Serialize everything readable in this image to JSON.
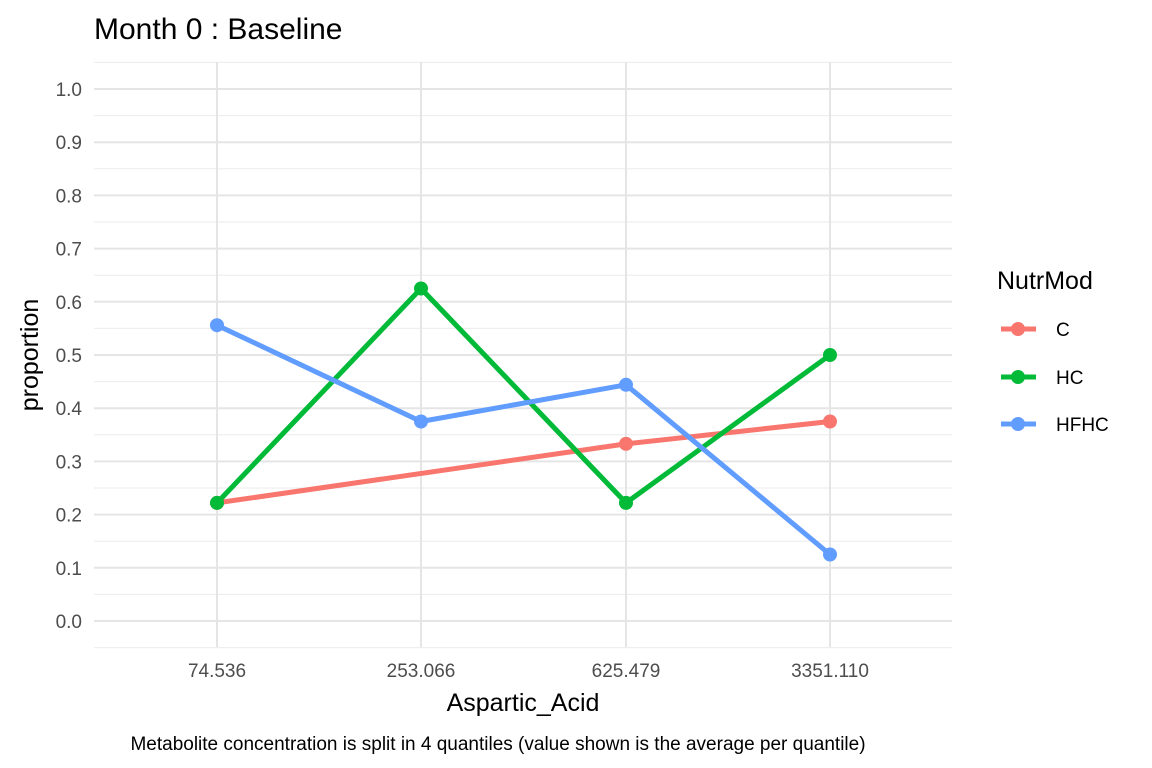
{
  "chart_data": {
    "type": "line",
    "title": "Month 0 : Baseline",
    "xlabel": "Aspartic_Acid",
    "ylabel": "proportion",
    "caption": "Metabolite concentration is split in 4 quantiles (value shown is the average per quantile)",
    "categories": [
      "74.536",
      "253.066",
      "625.479",
      "3351.110"
    ],
    "y_ticks": [
      "0.0",
      "0.1",
      "0.2",
      "0.3",
      "0.4",
      "0.5",
      "0.6",
      "0.7",
      "0.8",
      "0.9",
      "1.0"
    ],
    "ylim": [
      -0.05,
      1.05
    ],
    "grid": true,
    "legend": {
      "title": "NutrMod",
      "position": "right"
    },
    "series": [
      {
        "name": "C",
        "color": "#F8766D",
        "values": [
          0.222,
          null,
          0.333,
          0.375
        ]
      },
      {
        "name": "HC",
        "color": "#00BA38",
        "values": [
          0.222,
          0.625,
          0.222,
          0.5
        ]
      },
      {
        "name": "HFHC",
        "color": "#619CFF",
        "values": [
          0.556,
          0.375,
          0.444,
          0.125
        ]
      }
    ]
  }
}
